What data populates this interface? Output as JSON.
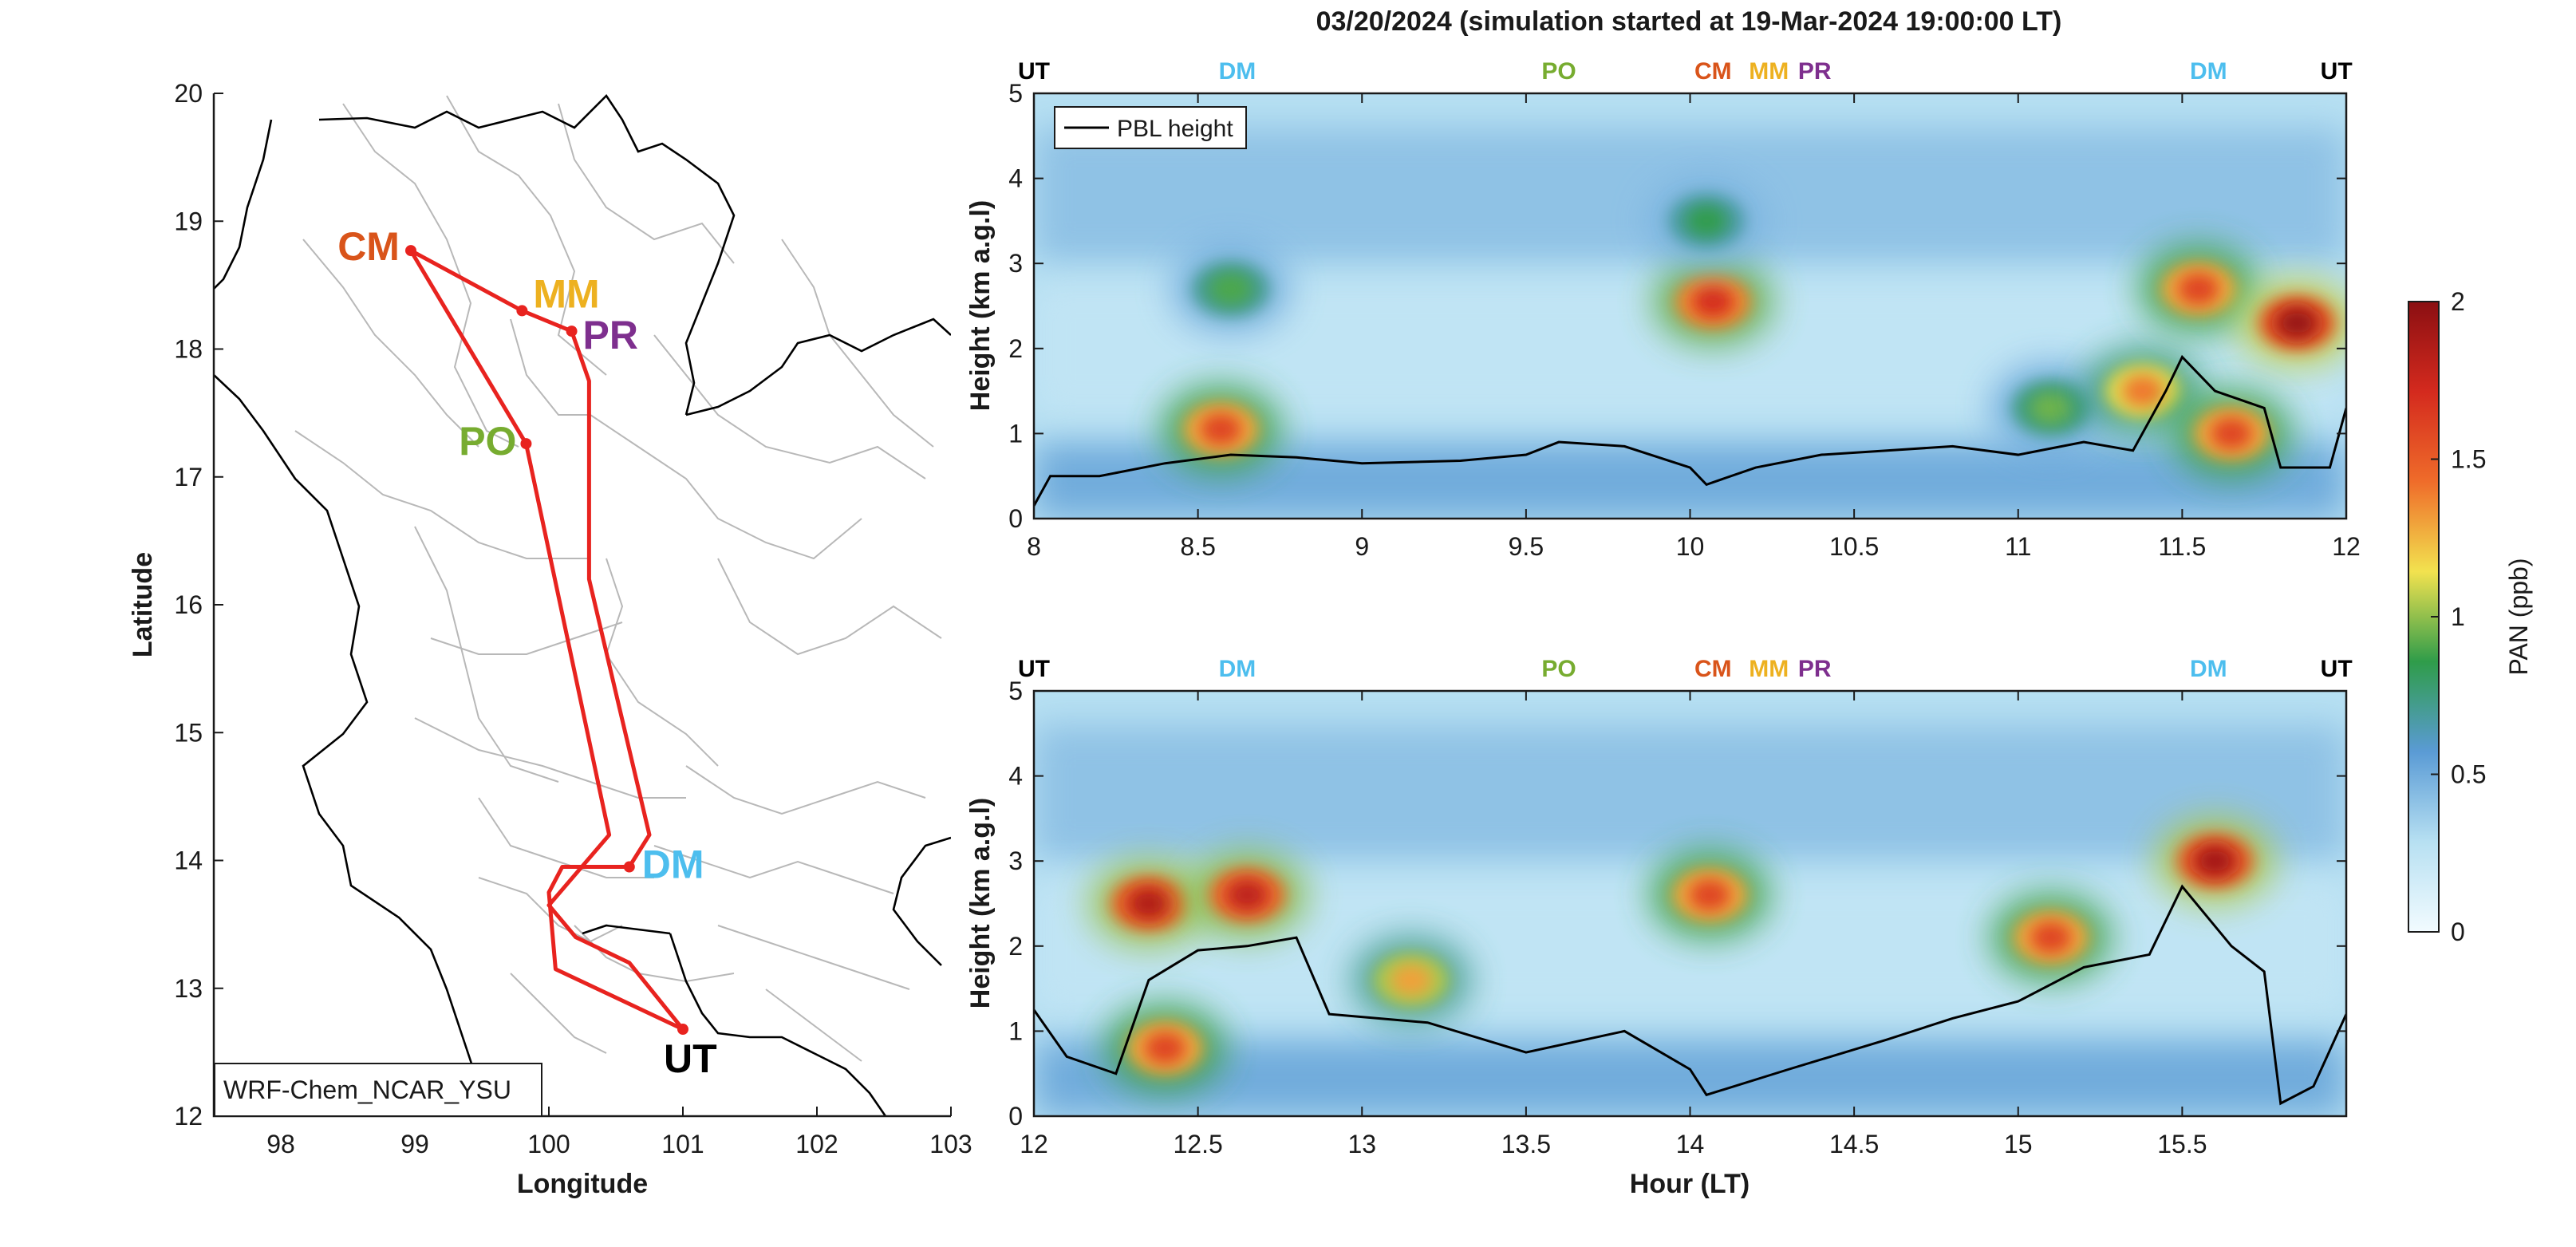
{
  "title": "03/20/2024 (simulation started at 19-Mar-2024 19:00:00 LT)",
  "chart_data": [
    {
      "type": "map",
      "xlabel": "Longitude",
      "ylabel": "Latitude",
      "xlim": [
        97.5,
        103
      ],
      "ylim": [
        12,
        20
      ],
      "xticks": [
        "98",
        "99",
        "100",
        "101",
        "102",
        "103"
      ],
      "yticks": [
        "12",
        "13",
        "14",
        "15",
        "16",
        "17",
        "18",
        "19",
        "20"
      ],
      "model_label": "WRF-Chem_NCAR_YSU",
      "route_color": "#e8231f",
      "stations": [
        {
          "code": "CM",
          "lon": 98.97,
          "lat": 18.77,
          "color": "#d9541a"
        },
        {
          "code": "MM",
          "lon": 99.8,
          "lat": 18.3,
          "color": "#edb120"
        },
        {
          "code": "PR",
          "lon": 100.17,
          "lat": 18.14,
          "color": "#7e2f8e"
        },
        {
          "code": "PO",
          "lon": 99.83,
          "lat": 17.26,
          "color": "#77ac30"
        },
        {
          "code": "DM",
          "lon": 100.6,
          "lat": 13.95,
          "color": "#4dbeee"
        },
        {
          "code": "UT",
          "lon": 101.0,
          "lat": 12.68,
          "color": "#000000"
        }
      ],
      "route": [
        [
          101.0,
          12.68
        ],
        [
          100.05,
          13.15
        ],
        [
          100.0,
          13.75
        ],
        [
          100.1,
          13.95
        ],
        [
          100.6,
          13.95
        ],
        [
          100.75,
          14.2
        ],
        [
          100.3,
          16.2
        ],
        [
          100.3,
          17.75
        ],
        [
          100.17,
          18.14
        ],
        [
          99.8,
          18.3
        ],
        [
          98.97,
          18.77
        ],
        [
          99.83,
          17.26
        ],
        [
          100.45,
          14.2
        ],
        [
          100.0,
          13.65
        ],
        [
          100.2,
          13.4
        ],
        [
          100.6,
          13.2
        ],
        [
          101.0,
          12.68
        ]
      ]
    },
    {
      "type": "heatmap",
      "panel": "top",
      "xlabel": "",
      "ylabel": "Height (km a.g.l)",
      "xlim": [
        8,
        12
      ],
      "ylim": [
        0,
        5
      ],
      "xticks": [
        "8",
        "8.5",
        "9",
        "9.5",
        "10",
        "10.5",
        "11",
        "11.5",
        "12"
      ],
      "yticks": [
        "0",
        "1",
        "2",
        "3",
        "4",
        "5"
      ],
      "legend": "PBL height",
      "station_marks": [
        {
          "code": "UT",
          "x": 8.0
        },
        {
          "code": "DM",
          "x": 8.62
        },
        {
          "code": "PO",
          "x": 9.6
        },
        {
          "code": "CM",
          "x": 10.07
        },
        {
          "code": "MM",
          "x": 10.24
        },
        {
          "code": "PR",
          "x": 10.38
        },
        {
          "code": "DM",
          "x": 11.58
        },
        {
          "code": "UT",
          "x": 11.97
        }
      ],
      "pan_features": [
        {
          "x": 8.57,
          "y": 1.05,
          "value": 1.6
        },
        {
          "x": 8.6,
          "y": 2.7,
          "value": 0.9
        },
        {
          "x": 10.07,
          "y": 2.55,
          "value": 1.7
        },
        {
          "x": 10.05,
          "y": 3.5,
          "value": 0.85
        },
        {
          "x": 11.1,
          "y": 1.3,
          "value": 0.95
        },
        {
          "x": 11.38,
          "y": 1.5,
          "value": 1.4
        },
        {
          "x": 11.55,
          "y": 2.7,
          "value": 1.6
        },
        {
          "x": 11.85,
          "y": 2.3,
          "value": 1.95
        },
        {
          "x": 11.65,
          "y": 1.0,
          "value": 1.6
        }
      ],
      "pbl_height": [
        {
          "x": 8.0,
          "y": 0.15
        },
        {
          "x": 8.05,
          "y": 0.5
        },
        {
          "x": 8.2,
          "y": 0.5
        },
        {
          "x": 8.4,
          "y": 0.65
        },
        {
          "x": 8.6,
          "y": 0.75
        },
        {
          "x": 8.8,
          "y": 0.72
        },
        {
          "x": 9.0,
          "y": 0.65
        },
        {
          "x": 9.3,
          "y": 0.68
        },
        {
          "x": 9.5,
          "y": 0.75
        },
        {
          "x": 9.6,
          "y": 0.9
        },
        {
          "x": 9.8,
          "y": 0.85
        },
        {
          "x": 10.0,
          "y": 0.6
        },
        {
          "x": 10.05,
          "y": 0.4
        },
        {
          "x": 10.2,
          "y": 0.6
        },
        {
          "x": 10.4,
          "y": 0.75
        },
        {
          "x": 10.6,
          "y": 0.8
        },
        {
          "x": 10.8,
          "y": 0.85
        },
        {
          "x": 11.0,
          "y": 0.75
        },
        {
          "x": 11.2,
          "y": 0.9
        },
        {
          "x": 11.35,
          "y": 0.8
        },
        {
          "x": 11.45,
          "y": 1.5
        },
        {
          "x": 11.5,
          "y": 1.9
        },
        {
          "x": 11.6,
          "y": 1.5
        },
        {
          "x": 11.75,
          "y": 1.3
        },
        {
          "x": 11.8,
          "y": 0.6
        },
        {
          "x": 11.95,
          "y": 0.6
        },
        {
          "x": 12.0,
          "y": 1.3
        }
      ]
    },
    {
      "type": "heatmap",
      "panel": "bottom",
      "xlabel": "Hour (LT)",
      "ylabel": "Height (km a.g.l)",
      "xlim": [
        12,
        16
      ],
      "ylim": [
        0,
        5
      ],
      "xticks": [
        "12",
        "12.5",
        "13",
        "13.5",
        "14",
        "14.5",
        "15",
        "15.5"
      ],
      "yticks": [
        "0",
        "1",
        "2",
        "3",
        "4",
        "5"
      ],
      "station_marks": [
        {
          "code": "UT",
          "x": 12.0
        },
        {
          "code": "DM",
          "x": 12.62
        },
        {
          "code": "PO",
          "x": 13.6
        },
        {
          "code": "CM",
          "x": 14.07
        },
        {
          "code": "MM",
          "x": 14.24
        },
        {
          "code": "PR",
          "x": 14.38
        },
        {
          "code": "DM",
          "x": 15.58
        },
        {
          "code": "UT",
          "x": 15.97
        }
      ],
      "pan_features": [
        {
          "x": 12.35,
          "y": 2.5,
          "value": 1.85
        },
        {
          "x": 12.65,
          "y": 2.6,
          "value": 1.8
        },
        {
          "x": 12.4,
          "y": 0.8,
          "value": 1.6
        },
        {
          "x": 13.15,
          "y": 1.6,
          "value": 1.3
        },
        {
          "x": 14.06,
          "y": 2.6,
          "value": 1.6
        },
        {
          "x": 15.1,
          "y": 2.1,
          "value": 1.6
        },
        {
          "x": 15.6,
          "y": 3.0,
          "value": 1.9
        }
      ],
      "pbl_height": [
        {
          "x": 12.0,
          "y": 1.25
        },
        {
          "x": 12.1,
          "y": 0.7
        },
        {
          "x": 12.25,
          "y": 0.5
        },
        {
          "x": 12.35,
          "y": 1.6
        },
        {
          "x": 12.5,
          "y": 1.95
        },
        {
          "x": 12.65,
          "y": 2.0
        },
        {
          "x": 12.8,
          "y": 2.1
        },
        {
          "x": 12.9,
          "y": 1.2
        },
        {
          "x": 13.2,
          "y": 1.1
        },
        {
          "x": 13.5,
          "y": 0.75
        },
        {
          "x": 13.8,
          "y": 1.0
        },
        {
          "x": 14.0,
          "y": 0.55
        },
        {
          "x": 14.05,
          "y": 0.25
        },
        {
          "x": 14.3,
          "y": 0.55
        },
        {
          "x": 14.6,
          "y": 0.9
        },
        {
          "x": 14.8,
          "y": 1.15
        },
        {
          "x": 15.0,
          "y": 1.35
        },
        {
          "x": 15.2,
          "y": 1.75
        },
        {
          "x": 15.4,
          "y": 1.9
        },
        {
          "x": 15.5,
          "y": 2.7
        },
        {
          "x": 15.65,
          "y": 2.0
        },
        {
          "x": 15.75,
          "y": 1.7
        },
        {
          "x": 15.8,
          "y": 0.15
        },
        {
          "x": 15.9,
          "y": 0.35
        },
        {
          "x": 16.0,
          "y": 1.2
        }
      ]
    },
    {
      "type": "colorbar",
      "label": "PAN (ppb)",
      "lim": [
        0,
        2
      ],
      "ticks": [
        "0",
        "0.5",
        "1",
        "1.5",
        "2"
      ],
      "colormap": [
        "#f2fbff",
        "#b7e0f2",
        "#5a9bd5",
        "#2f9c4a",
        "#f2e24f",
        "#ef6c2a",
        "#d42a1e",
        "#8b0f12"
      ]
    }
  ]
}
